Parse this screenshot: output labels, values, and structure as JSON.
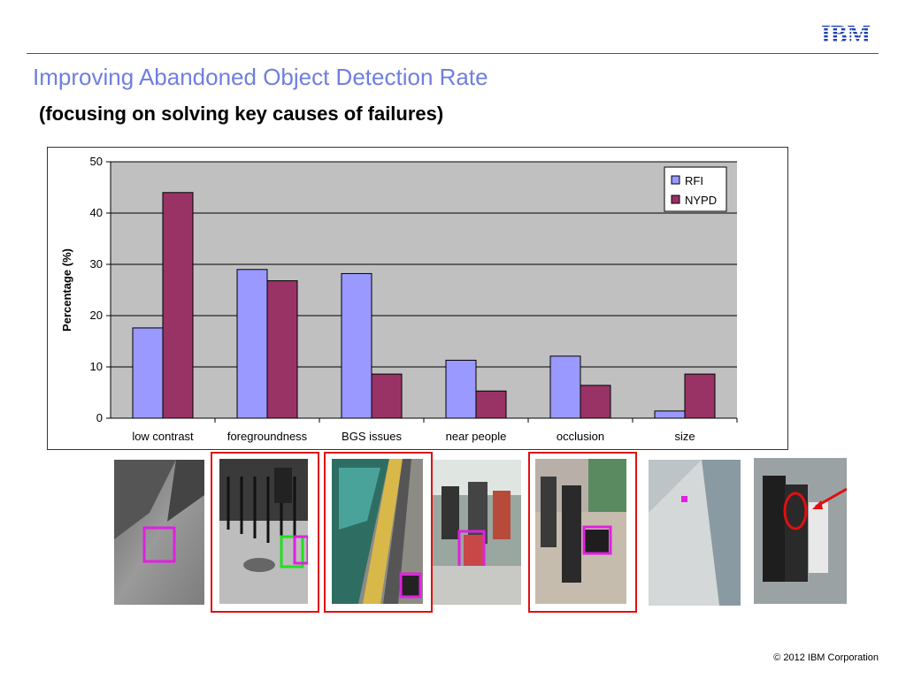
{
  "header": {
    "logo_text": "IBM",
    "title": "Improving Abandoned Object Detection Rate",
    "subtitle": "(focusing on solving key causes of failures)",
    "title_color": "#6f7fdd"
  },
  "chart_data": {
    "type": "bar",
    "categories": [
      "low contrast",
      "foregroundness",
      "BGS issues",
      "near people",
      "occlusion",
      "size"
    ],
    "series": [
      {
        "name": "RFI",
        "values": [
          17.6,
          29,
          28.2,
          11.3,
          12.1,
          1.4
        ],
        "color": "#9999ff"
      },
      {
        "name": "NYPD",
        "values": [
          44,
          26.8,
          8.6,
          5.3,
          6.4,
          8.6
        ],
        "color": "#993366"
      }
    ],
    "xlabel": "",
    "ylabel": "Percentage (%)",
    "ylim": [
      0,
      50
    ],
    "yticks": [
      0,
      10,
      20,
      30,
      40,
      50
    ],
    "grid": true,
    "legend": "top-right",
    "plot_background": "#c0c0c0"
  },
  "footer": {
    "copyright": "© 2012 IBM Corporation"
  }
}
